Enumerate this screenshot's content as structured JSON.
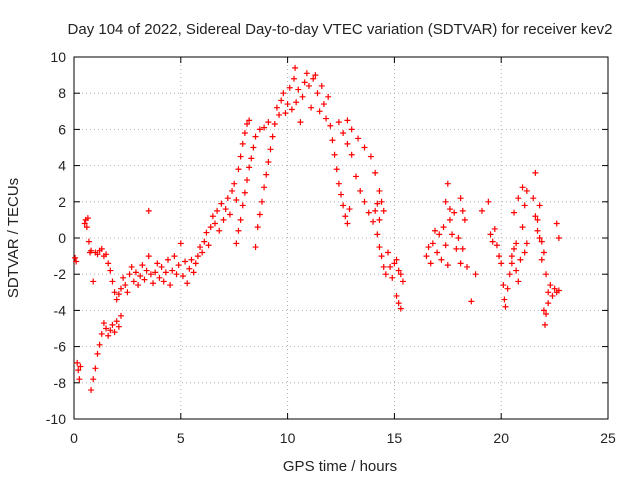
{
  "chart_data": {
    "type": "scatter",
    "title": "Day 104 of 2022, Sidereal Day-to-day VTEC variation (SDTVAR) for receiver kev2",
    "xlabel": "GPS time / hours",
    "ylabel": "SDTVAR / TECUs",
    "xlim": [
      0,
      25
    ],
    "ylim": [
      -10,
      10
    ],
    "x_ticks": [
      0,
      5,
      10,
      15,
      20,
      25
    ],
    "y_ticks": [
      -10,
      -8,
      -6,
      -4,
      -2,
      0,
      2,
      4,
      6,
      8,
      10
    ],
    "x_tick_labels": [
      "0",
      "5",
      "10",
      "15",
      "20",
      "25"
    ],
    "y_tick_labels": [
      "-10",
      "-8",
      "-6",
      "-4",
      "-2",
      "0",
      "2",
      "4",
      "6",
      "8",
      "10"
    ],
    "grid": true,
    "marker": "+",
    "color": "#ff0000",
    "series": [
      {
        "name": "SDTVAR",
        "points": [
          [
            0.05,
            -1.1
          ],
          [
            0.1,
            -1.3
          ],
          [
            0.15,
            -6.9
          ],
          [
            0.2,
            -7.3
          ],
          [
            0.25,
            -7.8
          ],
          [
            0.3,
            -7.1
          ],
          [
            0.5,
            0.8
          ],
          [
            0.55,
            1.0
          ],
          [
            0.6,
            0.6
          ],
          [
            0.65,
            1.1
          ],
          [
            0.7,
            -0.2
          ],
          [
            0.75,
            -0.8
          ],
          [
            0.8,
            -0.7
          ],
          [
            0.9,
            -2.4
          ],
          [
            1.0,
            -0.8
          ],
          [
            1.1,
            -0.9
          ],
          [
            1.2,
            -0.7
          ],
          [
            1.3,
            -0.6
          ],
          [
            1.4,
            -1.0
          ],
          [
            1.5,
            -0.9
          ],
          [
            0.8,
            -8.4
          ],
          [
            0.9,
            -7.8
          ],
          [
            1.0,
            -7.2
          ],
          [
            1.1,
            -6.4
          ],
          [
            1.2,
            -5.9
          ],
          [
            1.3,
            -5.3
          ],
          [
            1.4,
            -4.7
          ],
          [
            1.5,
            -5.0
          ],
          [
            1.6,
            -5.4
          ],
          [
            1.7,
            -5.1
          ],
          [
            1.8,
            -4.8
          ],
          [
            1.9,
            -5.2
          ],
          [
            2.0,
            -4.6
          ],
          [
            2.1,
            -4.9
          ],
          [
            2.2,
            -4.3
          ],
          [
            1.6,
            -1.4
          ],
          [
            1.7,
            -1.8
          ],
          [
            1.8,
            -2.4
          ],
          [
            1.9,
            -3.0
          ],
          [
            2.0,
            -3.4
          ],
          [
            2.1,
            -3.1
          ],
          [
            2.2,
            -2.8
          ],
          [
            2.3,
            -2.2
          ],
          [
            2.4,
            -2.6
          ],
          [
            2.5,
            -3.0
          ],
          [
            2.6,
            -2.0
          ],
          [
            2.7,
            -1.6
          ],
          [
            2.8,
            -2.4
          ],
          [
            2.9,
            -1.9
          ],
          [
            3.0,
            -2.6
          ],
          [
            3.1,
            -2.1
          ],
          [
            3.2,
            -1.5
          ],
          [
            3.3,
            -2.3
          ],
          [
            3.4,
            -1.8
          ],
          [
            3.5,
            -1.0
          ],
          [
            3.5,
            1.5
          ],
          [
            3.6,
            -2.0
          ],
          [
            3.7,
            -2.5
          ],
          [
            3.8,
            -1.9
          ],
          [
            3.9,
            -1.4
          ],
          [
            4.0,
            -2.2
          ],
          [
            4.1,
            -1.6
          ],
          [
            4.2,
            -2.4
          ],
          [
            4.3,
            -1.9
          ],
          [
            4.4,
            -1.2
          ],
          [
            4.5,
            -2.6
          ],
          [
            4.6,
            -1.8
          ],
          [
            4.7,
            -1.0
          ],
          [
            4.8,
            -2.0
          ],
          [
            4.9,
            -1.5
          ],
          [
            5.0,
            -0.3
          ],
          [
            5.1,
            -2.1
          ],
          [
            5.2,
            -1.3
          ],
          [
            5.3,
            -2.5
          ],
          [
            5.4,
            -1.7
          ],
          [
            5.5,
            -1.2
          ],
          [
            5.6,
            -1.9
          ],
          [
            5.7,
            -1.4
          ],
          [
            5.8,
            -1.0
          ],
          [
            5.9,
            -0.5
          ],
          [
            6.0,
            -0.8
          ],
          [
            6.1,
            -0.2
          ],
          [
            6.2,
            0.3
          ],
          [
            6.3,
            -0.4
          ],
          [
            6.4,
            0.6
          ],
          [
            6.5,
            1.2
          ],
          [
            6.6,
            0.8
          ],
          [
            6.7,
            1.5
          ],
          [
            6.8,
            0.4
          ],
          [
            6.9,
            1.9
          ],
          [
            7.0,
            1.0
          ],
          [
            7.1,
            1.6
          ],
          [
            7.2,
            2.2
          ],
          [
            7.3,
            1.3
          ],
          [
            7.4,
            2.6
          ],
          [
            7.5,
            3.0
          ],
          [
            7.6,
            2.1
          ],
          [
            7.7,
            3.8
          ],
          [
            7.8,
            4.5
          ],
          [
            7.9,
            5.2
          ],
          [
            8.0,
            5.8
          ],
          [
            8.1,
            6.3
          ],
          [
            8.2,
            6.5
          ],
          [
            7.6,
            -0.3
          ],
          [
            7.7,
            0.4
          ],
          [
            7.8,
            1.0
          ],
          [
            7.9,
            1.8
          ],
          [
            8.0,
            2.5
          ],
          [
            8.1,
            3.2
          ],
          [
            8.2,
            3.9
          ],
          [
            8.3,
            4.4
          ],
          [
            8.4,
            5.0
          ],
          [
            8.5,
            -0.5
          ],
          [
            8.6,
            0.6
          ],
          [
            8.7,
            1.3
          ],
          [
            8.8,
            2.0
          ],
          [
            8.9,
            2.8
          ],
          [
            9.0,
            3.5
          ],
          [
            9.1,
            4.2
          ],
          [
            9.2,
            4.9
          ],
          [
            8.5,
            5.6
          ],
          [
            8.7,
            6.0
          ],
          [
            8.9,
            6.1
          ],
          [
            9.1,
            6.4
          ],
          [
            9.3,
            5.6
          ],
          [
            9.4,
            6.3
          ],
          [
            9.5,
            7.2
          ],
          [
            9.6,
            6.8
          ],
          [
            9.7,
            7.6
          ],
          [
            9.8,
            8.0
          ],
          [
            9.9,
            6.9
          ],
          [
            10.0,
            7.4
          ],
          [
            10.1,
            8.3
          ],
          [
            10.2,
            7.1
          ],
          [
            10.3,
            8.8
          ],
          [
            10.35,
            9.4
          ],
          [
            10.4,
            7.5
          ],
          [
            10.5,
            8.2
          ],
          [
            10.6,
            6.4
          ],
          [
            10.7,
            7.8
          ],
          [
            10.8,
            8.6
          ],
          [
            10.9,
            9.1
          ],
          [
            11.0,
            8.4
          ],
          [
            11.1,
            7.2
          ],
          [
            11.2,
            8.8
          ],
          [
            11.3,
            9.0
          ],
          [
            11.4,
            8.0
          ],
          [
            11.5,
            7.0
          ],
          [
            11.6,
            8.4
          ],
          [
            11.7,
            7.4
          ],
          [
            11.8,
            6.6
          ],
          [
            11.9,
            7.8
          ],
          [
            12.0,
            6.2
          ],
          [
            12.1,
            5.4
          ],
          [
            12.2,
            4.6
          ],
          [
            12.3,
            3.8
          ],
          [
            12.4,
            3.0
          ],
          [
            12.5,
            2.4
          ],
          [
            12.6,
            1.8
          ],
          [
            12.7,
            1.2
          ],
          [
            12.8,
            0.8
          ],
          [
            12.9,
            1.6
          ],
          [
            12.4,
            6.4
          ],
          [
            12.6,
            5.8
          ],
          [
            12.8,
            5.2
          ],
          [
            13.0,
            4.6
          ],
          [
            13.2,
            3.4
          ],
          [
            13.4,
            2.6
          ],
          [
            13.6,
            2.0
          ],
          [
            13.8,
            1.4
          ],
          [
            14.0,
            0.9
          ],
          [
            14.1,
            1.5
          ],
          [
            14.2,
            1.9
          ],
          [
            14.3,
            1.0
          ],
          [
            12.8,
            6.5
          ],
          [
            13.0,
            6.0
          ],
          [
            13.3,
            5.5
          ],
          [
            13.6,
            5.0
          ],
          [
            13.9,
            4.5
          ],
          [
            14.1,
            3.6
          ],
          [
            14.3,
            2.6
          ],
          [
            14.4,
            2.0
          ],
          [
            14.5,
            1.5
          ],
          [
            14.2,
            0.2
          ],
          [
            14.3,
            -0.5
          ],
          [
            14.4,
            -1.0
          ],
          [
            14.5,
            -1.6
          ],
          [
            14.6,
            -2.0
          ],
          [
            14.7,
            -0.8
          ],
          [
            14.8,
            -1.6
          ],
          [
            14.9,
            -2.2
          ],
          [
            15.0,
            -1.4
          ],
          [
            15.1,
            -3.2
          ],
          [
            15.2,
            -3.6
          ],
          [
            15.3,
            -3.9
          ],
          [
            15.1,
            -1.2
          ],
          [
            15.2,
            -1.8
          ],
          [
            15.3,
            -2.0
          ],
          [
            15.4,
            -2.4
          ],
          [
            16.5,
            -1.0
          ],
          [
            16.6,
            -0.5
          ],
          [
            16.7,
            -1.4
          ],
          [
            16.8,
            -0.3
          ],
          [
            16.9,
            0.4
          ],
          [
            17.0,
            -0.8
          ],
          [
            17.1,
            0.2
          ],
          [
            17.2,
            -1.2
          ],
          [
            17.3,
            0.6
          ],
          [
            17.4,
            -0.4
          ],
          [
            17.5,
            -1.5
          ],
          [
            17.6,
            1.0
          ],
          [
            17.7,
            0.2
          ],
          [
            17.8,
            1.4
          ],
          [
            17.9,
            -0.6
          ],
          [
            18.0,
            0.0
          ],
          [
            18.1,
            -1.4
          ],
          [
            18.2,
            -0.6
          ],
          [
            18.3,
            1.0
          ],
          [
            18.4,
            -1.6
          ],
          [
            17.4,
            2.0
          ],
          [
            17.5,
            3.0
          ],
          [
            17.6,
            1.6
          ],
          [
            18.1,
            2.2
          ],
          [
            18.2,
            1.5
          ],
          [
            18.6,
            -3.5
          ],
          [
            18.8,
            -2.0
          ],
          [
            19.1,
            1.5
          ],
          [
            19.4,
            2.0
          ],
          [
            19.5,
            0.2
          ],
          [
            19.6,
            -0.2
          ],
          [
            19.7,
            0.5
          ],
          [
            19.8,
            -0.4
          ],
          [
            19.9,
            -1.0
          ],
          [
            20.0,
            -1.4
          ],
          [
            20.1,
            -2.6
          ],
          [
            20.15,
            -3.4
          ],
          [
            20.2,
            -3.8
          ],
          [
            20.3,
            -2.8
          ],
          [
            20.4,
            -2.0
          ],
          [
            20.5,
            -1.4
          ],
          [
            20.6,
            -0.6
          ],
          [
            20.7,
            -1.8
          ],
          [
            20.8,
            -2.4
          ],
          [
            20.9,
            -1.2
          ],
          [
            21.0,
            0.6
          ],
          [
            21.1,
            -0.8
          ],
          [
            21.2,
            -0.3
          ],
          [
            20.6,
            1.4
          ],
          [
            20.8,
            2.2
          ],
          [
            21.0,
            2.8
          ],
          [
            21.1,
            1.8
          ],
          [
            21.2,
            2.6
          ],
          [
            21.5,
            2.2
          ],
          [
            21.6,
            3.6
          ],
          [
            21.7,
            1.0
          ],
          [
            21.8,
            0.0
          ],
          [
            21.9,
            -1.2
          ],
          [
            22.0,
            -0.8
          ],
          [
            22.1,
            -2.0
          ],
          [
            22.2,
            -3.0
          ],
          [
            22.3,
            -2.6
          ],
          [
            22.4,
            -3.2
          ],
          [
            22.5,
            -2.8
          ],
          [
            22.6,
            -3.0
          ],
          [
            22.7,
            -2.9
          ],
          [
            21.6,
            1.2
          ],
          [
            21.7,
            0.4
          ],
          [
            21.8,
            1.8
          ],
          [
            21.9,
            -0.2
          ],
          [
            22.0,
            -4.0
          ],
          [
            22.05,
            -4.8
          ],
          [
            22.1,
            -4.2
          ],
          [
            22.2,
            -3.6
          ],
          [
            22.6,
            0.8
          ],
          [
            22.7,
            0.0
          ],
          [
            20.5,
            -1.0
          ],
          [
            20.7,
            -0.3
          ]
        ]
      }
    ]
  }
}
